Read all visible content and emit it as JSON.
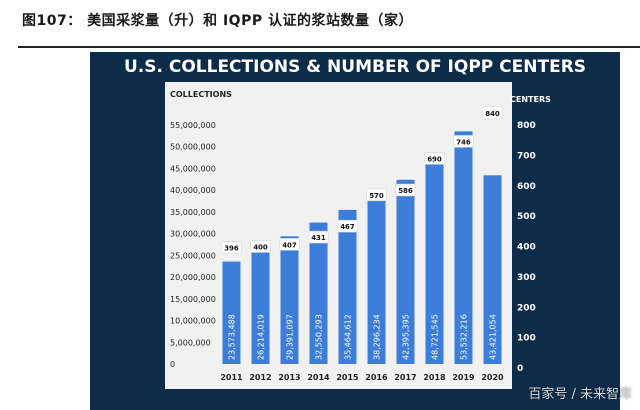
{
  "report": {
    "caption": "图107：   美国采浆量（升）和 IQPP 认证的浆站数量（家）",
    "watermark": "百家号 / 未来智库"
  },
  "colors": {
    "background": "#0d2c4a",
    "plot_area": "#f1f1f1",
    "bars": "#3b7dd8",
    "bar_top": "#3267c4",
    "title_text": "#ffffff",
    "axis_text": "#ffffff"
  },
  "chart_data": {
    "type": "bar",
    "title": "U.S. COLLECTIONS & NUMBER OF IQPP CENTERS",
    "ylabel": "COLLECTIONS",
    "y2label": "CENTERS",
    "categories": [
      "2011",
      "2012",
      "2013",
      "2014",
      "2015",
      "2016",
      "2017",
      "2018",
      "2019",
      "2020"
    ],
    "ylim": [
      0,
      55000000
    ],
    "y_ticks": [
      "0",
      "5,000,000",
      "10,000,000",
      "15,000,000",
      "20,000,000",
      "25,000,000",
      "30,000,000",
      "35,000,000",
      "40,000,000",
      "45,000,000",
      "50,000,000",
      "55,000,000"
    ],
    "y2lim": [
      0,
      800
    ],
    "y2_ticks": [
      "0",
      "100",
      "200",
      "300",
      "400",
      "500",
      "600",
      "700",
      "800"
    ],
    "series": [
      {
        "name": "COLLECTIONS",
        "values": [
          23573488,
          26214019,
          29391097,
          32550293,
          35464612,
          38296234,
          42395395,
          48721545,
          53532216,
          43421054
        ],
        "labels": [
          "23,573,488",
          "26,214,019",
          "29,391,097",
          "32,550,293",
          "35,464,612",
          "38,296,234",
          "42,395,395",
          "48,721,545",
          "53,532,216",
          "43,421,054"
        ]
      },
      {
        "name": "CENTERS",
        "values": [
          396,
          400,
          407,
          431,
          467,
          570,
          586,
          690,
          746,
          840
        ],
        "labels": [
          "396",
          "400",
          "407",
          "431",
          "467",
          "570",
          "586",
          "690",
          "746",
          "840"
        ]
      }
    ],
    "grid": false
  }
}
